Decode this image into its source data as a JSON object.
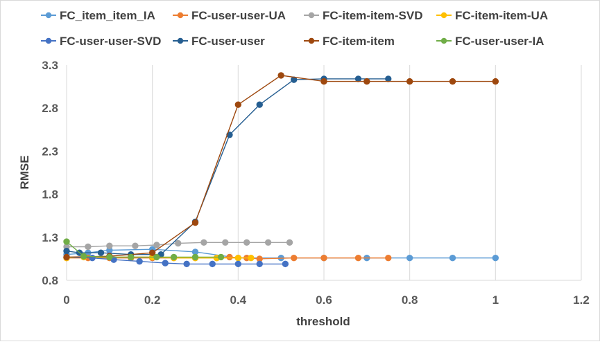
{
  "chart_data": {
    "type": "scatter",
    "xlabel": "threshold",
    "ylabel": "RMSE",
    "xlim": [
      0,
      1.2
    ],
    "ylim": [
      0.8,
      3.3
    ],
    "x_ticks": [
      "0",
      "0.2",
      "0.4",
      "0.6",
      "0.8",
      "1",
      "1.2"
    ],
    "y_ticks": [
      "0.8",
      "1.3",
      "1.8",
      "2.3",
      "2.8",
      "3.3"
    ],
    "grid": "vertical",
    "legend_position": "top",
    "series": [
      {
        "name": "FC_item_item_IA",
        "color": "#5b9bd5",
        "x": [
          0,
          0.05,
          0.1,
          0.2,
          0.3,
          0.4,
          0.5,
          0.6,
          0.7,
          0.8,
          0.9,
          1.0
        ],
        "y": [
          1.1,
          1.12,
          1.15,
          1.16,
          1.13,
          1.06,
          1.06,
          1.06,
          1.06,
          1.06,
          1.06,
          1.06
        ]
      },
      {
        "name": "FC-user-user-UA",
        "color": "#ed7d31",
        "x": [
          0,
          0.05,
          0.1,
          0.15,
          0.2,
          0.25,
          0.3,
          0.35,
          0.38,
          0.42,
          0.45,
          0.53,
          0.6,
          0.68,
          0.75
        ],
        "y": [
          1.06,
          1.06,
          1.06,
          1.06,
          1.06,
          1.06,
          1.06,
          1.06,
          1.07,
          1.06,
          1.05,
          1.06,
          1.06,
          1.06,
          1.06
        ]
      },
      {
        "name": "FC-item-item-SVD",
        "color": "#a5a5a5",
        "x": [
          0,
          0.05,
          0.1,
          0.16,
          0.21,
          0.26,
          0.32,
          0.37,
          0.42,
          0.47,
          0.52
        ],
        "y": [
          1.19,
          1.19,
          1.2,
          1.2,
          1.21,
          1.23,
          1.24,
          1.24,
          1.24,
          1.24,
          1.24
        ]
      },
      {
        "name": "FC-item-item-UA",
        "color": "#ffc000",
        "x": [
          0,
          0.04,
          0.1,
          0.15,
          0.2,
          0.25,
          0.3,
          0.35,
          0.4,
          0.43
        ],
        "y": [
          1.06,
          1.07,
          1.07,
          1.07,
          1.07,
          1.06,
          1.06,
          1.06,
          1.06,
          1.06
        ]
      },
      {
        "name": "FC-user-user-SVD",
        "color": "#4472c4",
        "x": [
          0,
          0.06,
          0.11,
          0.17,
          0.23,
          0.28,
          0.34,
          0.4,
          0.45,
          0.51
        ],
        "y": [
          1.07,
          1.06,
          1.04,
          1.02,
          1.0,
          0.99,
          0.99,
          0.99,
          0.99,
          0.99
        ]
      },
      {
        "name": "FC-user-user",
        "color": "#255e91",
        "x": [
          0,
          0.03,
          0.08,
          0.15,
          0.22,
          0.3,
          0.38,
          0.45,
          0.53,
          0.6,
          0.68,
          0.75
        ],
        "y": [
          1.14,
          1.12,
          1.12,
          1.1,
          1.1,
          1.48,
          2.49,
          2.84,
          3.13,
          3.14,
          3.14,
          3.14
        ]
      },
      {
        "name": "FC-item-item",
        "color": "#9e480e",
        "x": [
          0,
          0.1,
          0.2,
          0.3,
          0.4,
          0.5,
          0.6,
          0.7,
          0.8,
          0.9,
          1.0
        ],
        "y": [
          1.07,
          1.08,
          1.12,
          1.47,
          2.84,
          3.18,
          3.11,
          3.11,
          3.11,
          3.11,
          3.11
        ]
      },
      {
        "name": "FC-user-user-IA",
        "color": "#70ad47",
        "x": [
          0,
          0.04,
          0.1,
          0.15,
          0.21,
          0.25,
          0.3,
          0.36
        ],
        "y": [
          1.25,
          1.08,
          1.07,
          1.07,
          1.07,
          1.07,
          1.07,
          1.07
        ]
      }
    ]
  }
}
